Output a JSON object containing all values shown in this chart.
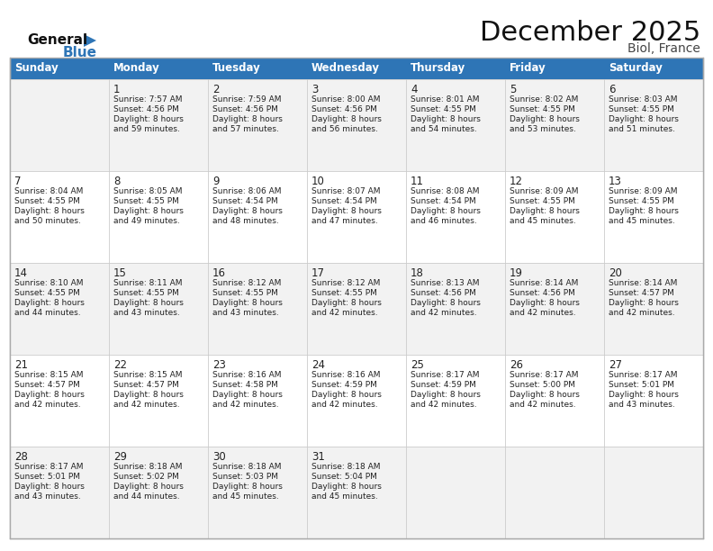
{
  "title": "December 2025",
  "subtitle": "Biol, France",
  "header_color": "#2E75B6",
  "header_text_color": "#FFFFFF",
  "days_of_week": [
    "Sunday",
    "Monday",
    "Tuesday",
    "Wednesday",
    "Thursday",
    "Friday",
    "Saturday"
  ],
  "background_color": "#FFFFFF",
  "row_bg_odd": "#F2F2F2",
  "row_bg_even": "#FFFFFF",
  "border_color": "#AAAAAA",
  "cell_border_color": "#CCCCCC",
  "text_color": "#222222",
  "logo_text_color": "#111111",
  "logo_blue_color": "#2E75B6",
  "calendar_data": [
    [
      {
        "day": "",
        "sunrise": "",
        "sunset": "",
        "daylight": ""
      },
      {
        "day": "1",
        "sunrise": "Sunrise: 7:57 AM",
        "sunset": "Sunset: 4:56 PM",
        "daylight": "Daylight: 8 hours\nand 59 minutes."
      },
      {
        "day": "2",
        "sunrise": "Sunrise: 7:59 AM",
        "sunset": "Sunset: 4:56 PM",
        "daylight": "Daylight: 8 hours\nand 57 minutes."
      },
      {
        "day": "3",
        "sunrise": "Sunrise: 8:00 AM",
        "sunset": "Sunset: 4:56 PM",
        "daylight": "Daylight: 8 hours\nand 56 minutes."
      },
      {
        "day": "4",
        "sunrise": "Sunrise: 8:01 AM",
        "sunset": "Sunset: 4:55 PM",
        "daylight": "Daylight: 8 hours\nand 54 minutes."
      },
      {
        "day": "5",
        "sunrise": "Sunrise: 8:02 AM",
        "sunset": "Sunset: 4:55 PM",
        "daylight": "Daylight: 8 hours\nand 53 minutes."
      },
      {
        "day": "6",
        "sunrise": "Sunrise: 8:03 AM",
        "sunset": "Sunset: 4:55 PM",
        "daylight": "Daylight: 8 hours\nand 51 minutes."
      }
    ],
    [
      {
        "day": "7",
        "sunrise": "Sunrise: 8:04 AM",
        "sunset": "Sunset: 4:55 PM",
        "daylight": "Daylight: 8 hours\nand 50 minutes."
      },
      {
        "day": "8",
        "sunrise": "Sunrise: 8:05 AM",
        "sunset": "Sunset: 4:55 PM",
        "daylight": "Daylight: 8 hours\nand 49 minutes."
      },
      {
        "day": "9",
        "sunrise": "Sunrise: 8:06 AM",
        "sunset": "Sunset: 4:54 PM",
        "daylight": "Daylight: 8 hours\nand 48 minutes."
      },
      {
        "day": "10",
        "sunrise": "Sunrise: 8:07 AM",
        "sunset": "Sunset: 4:54 PM",
        "daylight": "Daylight: 8 hours\nand 47 minutes."
      },
      {
        "day": "11",
        "sunrise": "Sunrise: 8:08 AM",
        "sunset": "Sunset: 4:54 PM",
        "daylight": "Daylight: 8 hours\nand 46 minutes."
      },
      {
        "day": "12",
        "sunrise": "Sunrise: 8:09 AM",
        "sunset": "Sunset: 4:55 PM",
        "daylight": "Daylight: 8 hours\nand 45 minutes."
      },
      {
        "day": "13",
        "sunrise": "Sunrise: 8:09 AM",
        "sunset": "Sunset: 4:55 PM",
        "daylight": "Daylight: 8 hours\nand 45 minutes."
      }
    ],
    [
      {
        "day": "14",
        "sunrise": "Sunrise: 8:10 AM",
        "sunset": "Sunset: 4:55 PM",
        "daylight": "Daylight: 8 hours\nand 44 minutes."
      },
      {
        "day": "15",
        "sunrise": "Sunrise: 8:11 AM",
        "sunset": "Sunset: 4:55 PM",
        "daylight": "Daylight: 8 hours\nand 43 minutes."
      },
      {
        "day": "16",
        "sunrise": "Sunrise: 8:12 AM",
        "sunset": "Sunset: 4:55 PM",
        "daylight": "Daylight: 8 hours\nand 43 minutes."
      },
      {
        "day": "17",
        "sunrise": "Sunrise: 8:12 AM",
        "sunset": "Sunset: 4:55 PM",
        "daylight": "Daylight: 8 hours\nand 42 minutes."
      },
      {
        "day": "18",
        "sunrise": "Sunrise: 8:13 AM",
        "sunset": "Sunset: 4:56 PM",
        "daylight": "Daylight: 8 hours\nand 42 minutes."
      },
      {
        "day": "19",
        "sunrise": "Sunrise: 8:14 AM",
        "sunset": "Sunset: 4:56 PM",
        "daylight": "Daylight: 8 hours\nand 42 minutes."
      },
      {
        "day": "20",
        "sunrise": "Sunrise: 8:14 AM",
        "sunset": "Sunset: 4:57 PM",
        "daylight": "Daylight: 8 hours\nand 42 minutes."
      }
    ],
    [
      {
        "day": "21",
        "sunrise": "Sunrise: 8:15 AM",
        "sunset": "Sunset: 4:57 PM",
        "daylight": "Daylight: 8 hours\nand 42 minutes."
      },
      {
        "day": "22",
        "sunrise": "Sunrise: 8:15 AM",
        "sunset": "Sunset: 4:57 PM",
        "daylight": "Daylight: 8 hours\nand 42 minutes."
      },
      {
        "day": "23",
        "sunrise": "Sunrise: 8:16 AM",
        "sunset": "Sunset: 4:58 PM",
        "daylight": "Daylight: 8 hours\nand 42 minutes."
      },
      {
        "day": "24",
        "sunrise": "Sunrise: 8:16 AM",
        "sunset": "Sunset: 4:59 PM",
        "daylight": "Daylight: 8 hours\nand 42 minutes."
      },
      {
        "day": "25",
        "sunrise": "Sunrise: 8:17 AM",
        "sunset": "Sunset: 4:59 PM",
        "daylight": "Daylight: 8 hours\nand 42 minutes."
      },
      {
        "day": "26",
        "sunrise": "Sunrise: 8:17 AM",
        "sunset": "Sunset: 5:00 PM",
        "daylight": "Daylight: 8 hours\nand 42 minutes."
      },
      {
        "day": "27",
        "sunrise": "Sunrise: 8:17 AM",
        "sunset": "Sunset: 5:01 PM",
        "daylight": "Daylight: 8 hours\nand 43 minutes."
      }
    ],
    [
      {
        "day": "28",
        "sunrise": "Sunrise: 8:17 AM",
        "sunset": "Sunset: 5:01 PM",
        "daylight": "Daylight: 8 hours\nand 43 minutes."
      },
      {
        "day": "29",
        "sunrise": "Sunrise: 8:18 AM",
        "sunset": "Sunset: 5:02 PM",
        "daylight": "Daylight: 8 hours\nand 44 minutes."
      },
      {
        "day": "30",
        "sunrise": "Sunrise: 8:18 AM",
        "sunset": "Sunset: 5:03 PM",
        "daylight": "Daylight: 8 hours\nand 45 minutes."
      },
      {
        "day": "31",
        "sunrise": "Sunrise: 8:18 AM",
        "sunset": "Sunset: 5:04 PM",
        "daylight": "Daylight: 8 hours\nand 45 minutes."
      },
      {
        "day": "",
        "sunrise": "",
        "sunset": "",
        "daylight": ""
      },
      {
        "day": "",
        "sunrise": "",
        "sunset": "",
        "daylight": ""
      },
      {
        "day": "",
        "sunrise": "",
        "sunset": "",
        "daylight": ""
      }
    ]
  ]
}
